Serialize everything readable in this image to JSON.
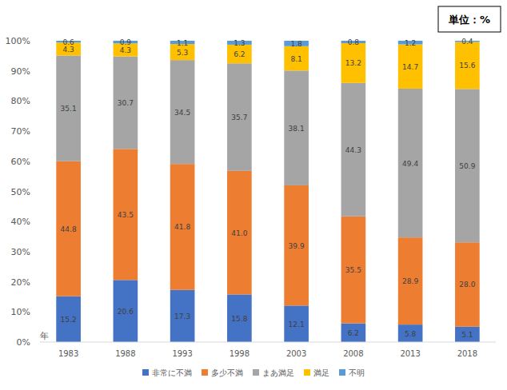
{
  "chart_data": {
    "type": "bar",
    "stacked": true,
    "data_labels": true,
    "grid": false,
    "legend": "bottom",
    "x_label": "年",
    "annotations": [
      "単位：%"
    ],
    "categories": [
      "1983",
      "1988",
      "1993",
      "1998",
      "2003",
      "2008",
      "2013",
      "2018"
    ],
    "ylim": [
      0,
      100
    ],
    "yticks": [
      {
        "value": 0,
        "label": "0%"
      },
      {
        "value": 10,
        "label": "10%"
      },
      {
        "value": 20,
        "label": "20%"
      },
      {
        "value": 30,
        "label": "30%"
      },
      {
        "value": 40,
        "label": "40%"
      },
      {
        "value": 50,
        "label": "50%"
      },
      {
        "value": 60,
        "label": "60%"
      },
      {
        "value": 70,
        "label": "70%"
      },
      {
        "value": 80,
        "label": "80%"
      },
      {
        "value": 90,
        "label": "90%"
      },
      {
        "value": 100,
        "label": "100%"
      }
    ],
    "series": [
      {
        "name": "非常に不満",
        "color": "#4472c4",
        "values": [
          15.2,
          20.6,
          17.3,
          15.8,
          12.1,
          6.2,
          5.8,
          5.1
        ],
        "value_labels": [
          "15.2",
          "20.6",
          "17.3",
          "15.8",
          "12.1",
          "6.2",
          "5.8",
          "5.1"
        ]
      },
      {
        "name": "多少不満",
        "color": "#ed7d31",
        "values": [
          44.8,
          43.5,
          41.8,
          41.0,
          39.9,
          35.5,
          28.9,
          28.0
        ],
        "value_labels": [
          "44.8",
          "43.5",
          "41.8",
          "41.0",
          "39.9",
          "35.5",
          "28.9",
          "28.0"
        ]
      },
      {
        "name": "まあ満足",
        "color": "#a5a5a5",
        "values": [
          35.1,
          30.7,
          34.5,
          35.7,
          38.1,
          44.3,
          49.4,
          50.9
        ],
        "value_labels": [
          "35.1",
          "30.7",
          "34.5",
          "35.7",
          "38.1",
          "44.3",
          "49.4",
          "50.9"
        ]
      },
      {
        "name": "満足",
        "color": "#ffc000",
        "values": [
          4.3,
          4.3,
          5.3,
          6.2,
          8.1,
          13.2,
          14.7,
          15.6
        ],
        "value_labels": [
          "4.3",
          "4.3",
          "5.3",
          "6.2",
          "8.1",
          "13.2",
          "14.7",
          "15.6"
        ]
      },
      {
        "name": "不明",
        "color": "#5b9bd5",
        "values": [
          0.6,
          0.9,
          1.1,
          1.3,
          1.8,
          0.8,
          1.2,
          0.4
        ],
        "value_labels": [
          "0.6",
          "0.9",
          "1.1",
          "1.3",
          "1.8",
          "0.8",
          "1.2",
          "0.4"
        ]
      }
    ]
  }
}
